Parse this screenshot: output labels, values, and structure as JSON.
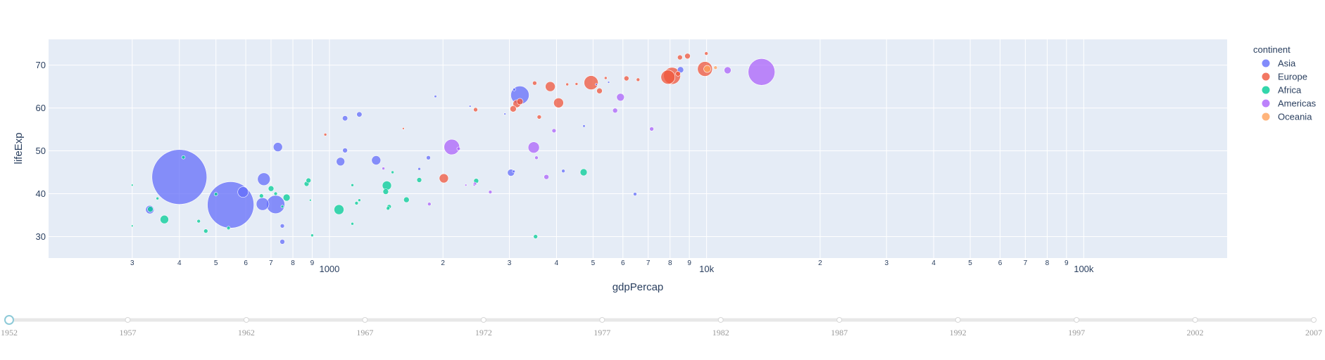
{
  "colors": {
    "plot_bg": "#e5ecf6",
    "grid": "#ffffff",
    "text": "#2a3f5f",
    "slider_track": "#e8e8e8",
    "slider_active": "#8ecad8"
  },
  "chart_data": {
    "type": "scatter",
    "title": "",
    "xlabel": "gdpPercap",
    "ylabel": "lifeExp",
    "x_scale": "log",
    "xlim": [
      180,
      240000
    ],
    "ylim": [
      25,
      76
    ],
    "x_ticks": [
      {
        "value": 300,
        "label": "3"
      },
      {
        "value": 400,
        "label": "4"
      },
      {
        "value": 500,
        "label": "5"
      },
      {
        "value": 600,
        "label": "6"
      },
      {
        "value": 700,
        "label": "7"
      },
      {
        "value": 800,
        "label": "8"
      },
      {
        "value": 900,
        "label": "9"
      },
      {
        "value": 1000,
        "label": "1000"
      },
      {
        "value": 2000,
        "label": "2"
      },
      {
        "value": 3000,
        "label": "3"
      },
      {
        "value": 4000,
        "label": "4"
      },
      {
        "value": 5000,
        "label": "5"
      },
      {
        "value": 6000,
        "label": "6"
      },
      {
        "value": 7000,
        "label": "7"
      },
      {
        "value": 8000,
        "label": "8"
      },
      {
        "value": 9000,
        "label": "9"
      },
      {
        "value": 10000,
        "label": "10k"
      },
      {
        "value": 20000,
        "label": "2"
      },
      {
        "value": 30000,
        "label": "3"
      },
      {
        "value": 40000,
        "label": "4"
      },
      {
        "value": 50000,
        "label": "5"
      },
      {
        "value": 60000,
        "label": "6"
      },
      {
        "value": 70000,
        "label": "7"
      },
      {
        "value": 80000,
        "label": "8"
      },
      {
        "value": 90000,
        "label": "9"
      },
      {
        "value": 100000,
        "label": "100k"
      }
    ],
    "y_ticks": [
      30,
      40,
      50,
      60,
      70
    ],
    "legend": {
      "title": "continent",
      "placement": "top-right",
      "items": [
        {
          "name": "Asia",
          "color": "#636efa"
        },
        {
          "name": "Europe",
          "color": "#ef553b"
        },
        {
          "name": "Africa",
          "color": "#00cc96"
        },
        {
          "name": "Americas",
          "color": "#ab63fa"
        },
        {
          "name": "Oceania",
          "color": "#ffa15a"
        }
      ]
    },
    "series": [
      {
        "name": "Asia",
        "points": [
          {
            "x": 400,
            "y": 43.9,
            "r": 39
          },
          {
            "x": 547,
            "y": 37.4,
            "r": 33
          },
          {
            "x": 3200,
            "y": 63.0,
            "r": 13
          },
          {
            "x": 720,
            "y": 37.5,
            "r": 13
          },
          {
            "x": 670,
            "y": 43.4,
            "r": 9
          },
          {
            "x": 665,
            "y": 37.6,
            "r": 9
          },
          {
            "x": 590,
            "y": 40.4,
            "r": 7.5
          },
          {
            "x": 1330,
            "y": 47.8,
            "r": 6.5
          },
          {
            "x": 730,
            "y": 50.9,
            "r": 6.5
          },
          {
            "x": 1070,
            "y": 47.5,
            "r": 6
          },
          {
            "x": 334,
            "y": 36.3,
            "r": 6
          },
          {
            "x": 3030,
            "y": 44.9,
            "r": 5
          },
          {
            "x": 8530,
            "y": 68.9,
            "r": 4.5
          },
          {
            "x": 1200,
            "y": 58.5,
            "r": 3.8
          },
          {
            "x": 1100,
            "y": 57.6,
            "r": 3.8
          },
          {
            "x": 1100,
            "y": 50.1,
            "r": 3.5
          },
          {
            "x": 750,
            "y": 28.8,
            "r": 3.5
          },
          {
            "x": 750,
            "y": 32.5,
            "r": 3
          },
          {
            "x": 1830,
            "y": 48.4,
            "r": 3
          },
          {
            "x": 4170,
            "y": 45.3,
            "r": 2.5
          },
          {
            "x": 6460,
            "y": 39.9,
            "r": 2.5
          },
          {
            "x": 1730,
            "y": 45.8,
            "r": 2
          },
          {
            "x": 3080,
            "y": 45.2,
            "r": 2
          },
          {
            "x": 3090,
            "y": 64.3,
            "r": 2
          },
          {
            "x": 4730,
            "y": 55.8,
            "r": 1.8
          },
          {
            "x": 1910,
            "y": 62.7,
            "r": 1.8
          },
          {
            "x": 2360,
            "y": 60.4,
            "r": 1.5
          },
          {
            "x": 5100,
            "y": 65.5,
            "r": 1.5
          },
          {
            "x": 5500,
            "y": 66.0,
            "r": 1.5
          },
          {
            "x": 2920,
            "y": 58.6,
            "r": 1.5
          }
        ]
      },
      {
        "name": "Europe",
        "points": [
          {
            "x": 8100,
            "y": 67.5,
            "r": 12
          },
          {
            "x": 7900,
            "y": 67.2,
            "r": 10
          },
          {
            "x": 9900,
            "y": 69.1,
            "r": 10.5
          },
          {
            "x": 4940,
            "y": 65.9,
            "r": 10
          },
          {
            "x": 3850,
            "y": 65.0,
            "r": 7
          },
          {
            "x": 4050,
            "y": 61.2,
            "r": 7
          },
          {
            "x": 3140,
            "y": 61.0,
            "r": 5.5
          },
          {
            "x": 3070,
            "y": 59.8,
            "r": 4.5
          },
          {
            "x": 3200,
            "y": 61.5,
            "r": 4.5
          },
          {
            "x": 2010,
            "y": 43.6,
            "r": 6.5
          },
          {
            "x": 5200,
            "y": 64.0,
            "r": 4
          },
          {
            "x": 8900,
            "y": 72.1,
            "r": 4
          },
          {
            "x": 8500,
            "y": 71.8,
            "r": 3.5
          },
          {
            "x": 8400,
            "y": 68.0,
            "r": 3.5
          },
          {
            "x": 6130,
            "y": 66.9,
            "r": 3.5
          },
          {
            "x": 3500,
            "y": 65.8,
            "r": 3
          },
          {
            "x": 3600,
            "y": 57.9,
            "r": 3
          },
          {
            "x": 2440,
            "y": 59.6,
            "r": 3
          },
          {
            "x": 6580,
            "y": 66.6,
            "r": 2.5
          },
          {
            "x": 9980,
            "y": 72.7,
            "r": 2.5
          },
          {
            "x": 4270,
            "y": 65.5,
            "r": 2
          },
          {
            "x": 4520,
            "y": 65.6,
            "r": 2
          },
          {
            "x": 5400,
            "y": 67.0,
            "r": 2
          },
          {
            "x": 975,
            "y": 53.8,
            "r": 2
          },
          {
            "x": 1570,
            "y": 55.2,
            "r": 1.5
          }
        ]
      },
      {
        "name": "Africa",
        "points": [
          {
            "x": 1060,
            "y": 36.3,
            "r": 7
          },
          {
            "x": 1420,
            "y": 41.9,
            "r": 6.5
          },
          {
            "x": 4720,
            "y": 45.0,
            "r": 5
          },
          {
            "x": 365,
            "y": 34.0,
            "r": 6
          },
          {
            "x": 335,
            "y": 36.4,
            "r": 4
          },
          {
            "x": 1410,
            "y": 40.5,
            "r": 4
          },
          {
            "x": 1600,
            "y": 38.6,
            "r": 4
          },
          {
            "x": 1730,
            "y": 43.2,
            "r": 3.5
          },
          {
            "x": 1180,
            "y": 37.8,
            "r": 2.5
          },
          {
            "x": 770,
            "y": 39.1,
            "r": 5
          },
          {
            "x": 870,
            "y": 42.3,
            "r": 3.5
          },
          {
            "x": 880,
            "y": 43.1,
            "r": 3.5
          },
          {
            "x": 2450,
            "y": 43.0,
            "r": 3.5
          },
          {
            "x": 3520,
            "y": 30.0,
            "r": 3
          },
          {
            "x": 1440,
            "y": 37.0,
            "r": 3
          },
          {
            "x": 1430,
            "y": 36.6,
            "r": 2.5
          },
          {
            "x": 700,
            "y": 41.2,
            "r": 4
          },
          {
            "x": 660,
            "y": 39.5,
            "r": 3
          },
          {
            "x": 470,
            "y": 31.3,
            "r": 3
          },
          {
            "x": 450,
            "y": 33.6,
            "r": 2.5
          },
          {
            "x": 540,
            "y": 32.0,
            "r": 2.5
          },
          {
            "x": 500,
            "y": 39.9,
            "r": 2.5
          },
          {
            "x": 410,
            "y": 48.5,
            "r": 2.5
          },
          {
            "x": 350,
            "y": 38.9,
            "r": 2
          },
          {
            "x": 720,
            "y": 40.0,
            "r": 2.5
          },
          {
            "x": 900,
            "y": 30.3,
            "r": 2
          },
          {
            "x": 1200,
            "y": 38.5,
            "r": 2
          },
          {
            "x": 1150,
            "y": 33.0,
            "r": 2
          },
          {
            "x": 1470,
            "y": 45.0,
            "r": 2
          },
          {
            "x": 750,
            "y": 37.0,
            "r": 2
          },
          {
            "x": 300,
            "y": 42.0,
            "r": 1.5
          },
          {
            "x": 300,
            "y": 32.5,
            "r": 1.5
          },
          {
            "x": 890,
            "y": 38.5,
            "r": 1.5
          },
          {
            "x": 1150,
            "y": 42.0,
            "r": 2
          }
        ]
      },
      {
        "name": "Americas",
        "points": [
          {
            "x": 13990,
            "y": 68.4,
            "r": 19
          },
          {
            "x": 2110,
            "y": 50.9,
            "r": 11
          },
          {
            "x": 3480,
            "y": 50.8,
            "r": 8
          },
          {
            "x": 11370,
            "y": 68.8,
            "r": 5
          },
          {
            "x": 5910,
            "y": 62.5,
            "r": 5.5
          },
          {
            "x": 5720,
            "y": 59.4,
            "r": 3.5
          },
          {
            "x": 3760,
            "y": 43.9,
            "r": 3.5
          },
          {
            "x": 7150,
            "y": 55.1,
            "r": 3
          },
          {
            "x": 3940,
            "y": 54.7,
            "r": 3
          },
          {
            "x": 2430,
            "y": 42.3,
            "r": 2.5
          },
          {
            "x": 3540,
            "y": 48.4,
            "r": 2.5
          },
          {
            "x": 2670,
            "y": 40.4,
            "r": 2.5
          },
          {
            "x": 1840,
            "y": 37.6,
            "r": 2.5
          },
          {
            "x": 2200,
            "y": 50.5,
            "r": 2.5
          },
          {
            "x": 1390,
            "y": 45.9,
            "r": 2
          },
          {
            "x": 2300,
            "y": 42.0,
            "r": 1.5
          },
          {
            "x": 2420,
            "y": 42.0,
            "r": 1.5
          }
        ]
      },
      {
        "name": "Oceania",
        "points": [
          {
            "x": 10040,
            "y": 69.1,
            "r": 5
          },
          {
            "x": 10560,
            "y": 69.4,
            "r": 2.5
          }
        ]
      }
    ]
  },
  "slider": {
    "current": "1952",
    "steps": [
      "1952",
      "1957",
      "1962",
      "1967",
      "1972",
      "1977",
      "1982",
      "1987",
      "1992",
      "1997",
      "2002",
      "2007"
    ]
  }
}
